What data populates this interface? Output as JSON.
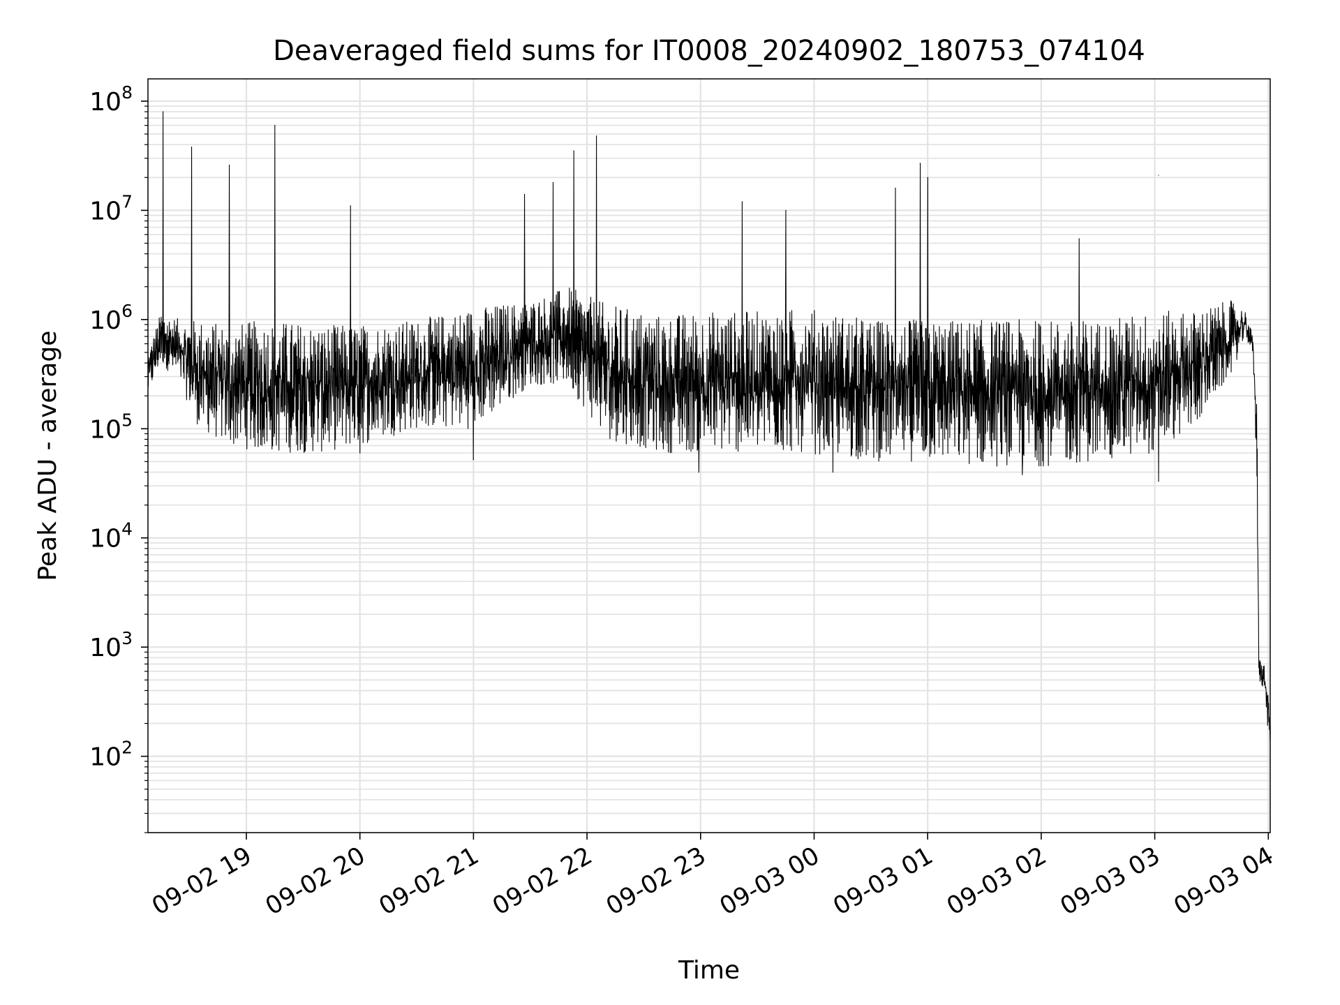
{
  "chart_data": {
    "type": "line",
    "title": "Deaveraged field sums for IT0008_20240902_180753_074104",
    "xlabel": "Time",
    "ylabel": "Peak ADU - average",
    "x_start": "2024-09-02 18:08",
    "x_end": "2024-09-03 04:01",
    "xlim": [
      "2024-09-02 18:08",
      "2024-09-03 04:01"
    ],
    "ylim": [
      20,
      160000000
    ],
    "y_scale": "log",
    "grid": true,
    "line_color": "#000000",
    "x_ticks": [
      {
        "t": "2024-09-02 19:00",
        "label": "09-02 19"
      },
      {
        "t": "2024-09-02 20:00",
        "label": "09-02 20"
      },
      {
        "t": "2024-09-02 21:00",
        "label": "09-02 21"
      },
      {
        "t": "2024-09-02 22:00",
        "label": "09-02 22"
      },
      {
        "t": "2024-09-02 23:00",
        "label": "09-02 23"
      },
      {
        "t": "2024-09-03 00:00",
        "label": "09-03 00"
      },
      {
        "t": "2024-09-03 01:00",
        "label": "09-03 01"
      },
      {
        "t": "2024-09-03 02:00",
        "label": "09-03 02"
      },
      {
        "t": "2024-09-03 03:00",
        "label": "09-03 03"
      },
      {
        "t": "2024-09-03 04:00",
        "label": "09-03 04"
      }
    ],
    "y_ticks": [
      {
        "value": 100,
        "base": "10",
        "exp": "2"
      },
      {
        "value": 1000,
        "base": "10",
        "exp": "3"
      },
      {
        "value": 10000,
        "base": "10",
        "exp": "4"
      },
      {
        "value": 100000,
        "base": "10",
        "exp": "5"
      },
      {
        "value": 1000000,
        "base": "10",
        "exp": "6"
      },
      {
        "value": 10000000,
        "base": "10",
        "exp": "7"
      },
      {
        "value": 100000000,
        "base": "10",
        "exp": "8"
      }
    ],
    "envelope": [
      {
        "t": "2024-09-02 18:08",
        "low": 200000,
        "high": 500000
      },
      {
        "t": "2024-09-02 18:15",
        "low": 400000,
        "high": 1200000
      },
      {
        "t": "2024-09-02 18:25",
        "low": 250000,
        "high": 1000000
      },
      {
        "t": "2024-09-02 18:35",
        "low": 100000,
        "high": 1000000
      },
      {
        "t": "2024-09-02 18:50",
        "low": 70000,
        "high": 900000
      },
      {
        "t": "2024-09-02 19:10",
        "low": 60000,
        "high": 1000000
      },
      {
        "t": "2024-09-02 19:40",
        "low": 60000,
        "high": 900000
      },
      {
        "t": "2024-09-02 20:00",
        "low": 70000,
        "high": 900000
      },
      {
        "t": "2024-09-02 20:30",
        "low": 100000,
        "high": 1000000
      },
      {
        "t": "2024-09-02 21:00",
        "low": 100000,
        "high": 1300000
      },
      {
        "t": "2024-09-02 21:30",
        "low": 250000,
        "high": 1500000
      },
      {
        "t": "2024-09-02 21:50",
        "low": 250000,
        "high": 2000000
      },
      {
        "t": "2024-09-02 22:10",
        "low": 80000,
        "high": 1400000
      },
      {
        "t": "2024-09-02 22:40",
        "low": 60000,
        "high": 1100000
      },
      {
        "t": "2024-09-02 23:00",
        "low": 60000,
        "high": 1200000
      },
      {
        "t": "2024-09-02 23:30",
        "low": 60000,
        "high": 1200000
      },
      {
        "t": "2024-09-02 23:55",
        "low": 60000,
        "high": 1300000
      },
      {
        "t": "2024-09-03 00:30",
        "low": 50000,
        "high": 1000000
      },
      {
        "t": "2024-09-03 01:00",
        "low": 50000,
        "high": 1000000
      },
      {
        "t": "2024-09-03 01:30",
        "low": 45000,
        "high": 1000000
      },
      {
        "t": "2024-09-03 02:00",
        "low": 45000,
        "high": 1000000
      },
      {
        "t": "2024-09-03 02:30",
        "low": 50000,
        "high": 1000000
      },
      {
        "t": "2024-09-03 03:00",
        "low": 60000,
        "high": 1200000
      },
      {
        "t": "2024-09-03 03:20",
        "low": 100000,
        "high": 1200000
      },
      {
        "t": "2024-09-03 03:40",
        "low": 300000,
        "high": 1500000
      },
      {
        "t": "2024-09-03 03:48",
        "low": 700000,
        "high": 1200000
      },
      {
        "t": "2024-09-03 03:52",
        "low": 450000,
        "high": 700000
      },
      {
        "t": "2024-09-03 03:54",
        "low": 30000,
        "high": 150000
      },
      {
        "t": "2024-09-03 03:55",
        "low": 500,
        "high": 800
      },
      {
        "t": "2024-09-03 03:58",
        "low": 400,
        "high": 700
      },
      {
        "t": "2024-09-03 04:01",
        "low": 100,
        "high": 250
      }
    ],
    "spikes": [
      {
        "t": "2024-09-02 18:16",
        "value": 80000000
      },
      {
        "t": "2024-09-02 18:31",
        "value": 38000000
      },
      {
        "t": "2024-09-02 18:51",
        "value": 26000000
      },
      {
        "t": "2024-09-02 19:15",
        "value": 60000000
      },
      {
        "t": "2024-09-02 19:55",
        "value": 11000000
      },
      {
        "t": "2024-09-02 21:27",
        "value": 14000000
      },
      {
        "t": "2024-09-02 21:42",
        "value": 18000000
      },
      {
        "t": "2024-09-02 21:53",
        "value": 35000000
      },
      {
        "t": "2024-09-02 22:05",
        "value": 48000000
      },
      {
        "t": "2024-09-02 23:22",
        "value": 12000000
      },
      {
        "t": "2024-09-02 23:45",
        "value": 10000000
      },
      {
        "t": "2024-09-03 00:43",
        "value": 16000000
      },
      {
        "t": "2024-09-03 00:56",
        "value": 27000000
      },
      {
        "t": "2024-09-03 01:00",
        "value": 20000000
      },
      {
        "t": "2024-09-03 02:20",
        "value": 5500000
      },
      {
        "t": "2024-09-03 03:02",
        "value": 21000000
      }
    ],
    "dips": [
      {
        "t": "2024-09-02 20:00",
        "value": 60000
      },
      {
        "t": "2024-09-02 21:00",
        "value": 52000
      },
      {
        "t": "2024-09-02 22:59",
        "value": 40000
      },
      {
        "t": "2024-09-03 00:10",
        "value": 40000
      },
      {
        "t": "2024-09-03 01:50",
        "value": 38000
      },
      {
        "t": "2024-09-03 03:02",
        "value": 33000
      }
    ]
  }
}
